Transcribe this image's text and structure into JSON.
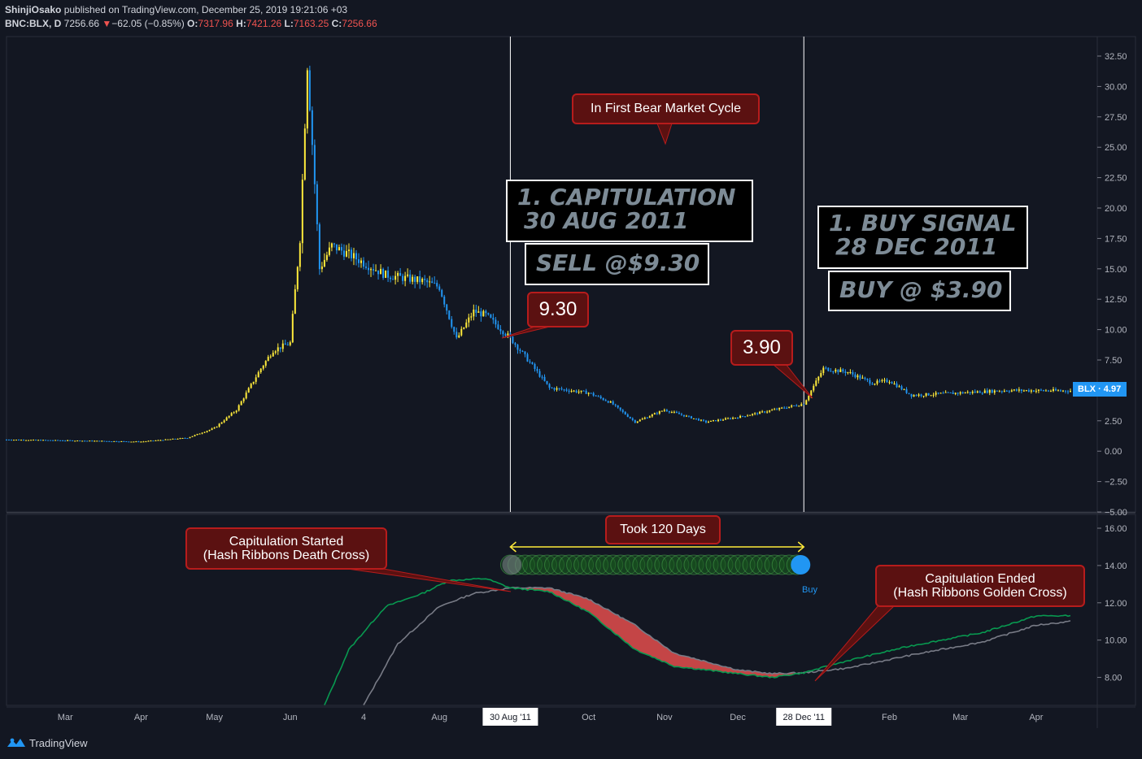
{
  "header": {
    "author": "ShinjiOsako",
    "published": "published on TradingView.com, December 25, 2019 19:21:06 +03",
    "symbol": "BNC:BLX, D",
    "last": "7256.66",
    "change_arrow": "▼",
    "change": "−62.05 (−0.85%)",
    "o_label": "O:",
    "o": "7317.96",
    "h_label": "H:",
    "h": "7421.26",
    "l_label": "L:",
    "l": "7163.25",
    "c_label": "C:",
    "c": "7256.66"
  },
  "annotations": {
    "bear_cycle": "In First Bear Market Cycle",
    "capitulation_line1": "1. CAPITULATION",
    "capitulation_line2": "30 AUG 2011",
    "sell": "SELL @$9.30",
    "price_930": "9.30",
    "price_390": "3.90",
    "buy_signal_line1": "1. BUY SIGNAL",
    "buy_signal_line2": "28 DEC 2011",
    "buy": "BUY @ $3.90",
    "took_days": "Took 120 Days",
    "cap_started_line1": "Capitulation Started",
    "cap_started_line2": "(Hash Ribbons Death Cross)",
    "cap_ended_line1": "Capitulation Ended",
    "cap_ended_line2": "(Hash Ribbons Golden Cross)",
    "buy_marker": "Buy"
  },
  "price_badge": {
    "symbol": "BLX",
    "value": "4.97"
  },
  "footer": {
    "brand": "TradingView"
  },
  "colors": {
    "up": "#ffeb3b",
    "down": "#2196f3",
    "fast_ma": "#089950",
    "slow_ma": "#787b86",
    "ribbon_fill": "#d84a4a",
    "callout_bg": "#5b1111",
    "callout_border": "#b71c1c"
  },
  "chart_data": [
    {
      "type": "candlestick",
      "symbol": "BNC:BLX",
      "interval": "D",
      "y_ticks": [
        "32.50",
        "30.00",
        "27.50",
        "25.00",
        "22.50",
        "20.00",
        "17.50",
        "15.00",
        "12.50",
        "10.00",
        "7.50",
        "5.00",
        "2.50",
        "0.00",
        "−2.50",
        "−5.00"
      ],
      "ylim": [
        -5,
        33
      ],
      "x_ticks": [
        "Mar",
        "Apr",
        "May",
        "Jun",
        "4",
        "Aug",
        "30 Aug '11",
        "Oct",
        "Nov",
        "Dec",
        "28 Dec '11",
        "Feb",
        "Mar",
        "Apr"
      ],
      "x_dates": [
        "2011-03-01",
        "2011-04-01",
        "2011-05-01",
        "2011-06-01",
        "2011-07-01",
        "2011-08-01",
        "2011-08-30",
        "2011-10-01",
        "2011-11-01",
        "2011-12-01",
        "2011-12-28",
        "2012-02-01",
        "2012-03-01",
        "2012-04-01"
      ],
      "xlim": [
        "2011-02-05",
        "2012-04-15"
      ],
      "price_path": [
        {
          "date": "2011-02-05",
          "close": 0.95
        },
        {
          "date": "2011-03-01",
          "close": 0.88
        },
        {
          "date": "2011-04-01",
          "close": 0.78
        },
        {
          "date": "2011-04-20",
          "close": 1.1
        },
        {
          "date": "2011-05-01",
          "close": 1.9
        },
        {
          "date": "2011-05-10",
          "close": 3.4
        },
        {
          "date": "2011-05-20",
          "close": 6.8
        },
        {
          "date": "2011-05-25",
          "close": 8.3
        },
        {
          "date": "2011-06-01",
          "close": 8.9
        },
        {
          "date": "2011-06-05",
          "close": 17.5
        },
        {
          "date": "2011-06-08",
          "close": 31.9
        },
        {
          "date": "2011-06-11",
          "close": 22
        },
        {
          "date": "2011-06-13",
          "close": 15
        },
        {
          "date": "2011-06-18",
          "close": 16.9
        },
        {
          "date": "2011-06-25",
          "close": 16.2
        },
        {
          "date": "2011-07-01",
          "close": 15.5
        },
        {
          "date": "2011-07-10",
          "close": 14.5
        },
        {
          "date": "2011-07-25",
          "close": 14
        },
        {
          "date": "2011-08-01",
          "close": 13.5
        },
        {
          "date": "2011-08-08",
          "close": 9.2
        },
        {
          "date": "2011-08-15",
          "close": 11.5
        },
        {
          "date": "2011-08-20",
          "close": 11.2
        },
        {
          "date": "2011-08-30",
          "close": 9.3
        },
        {
          "date": "2011-09-05",
          "close": 7.8
        },
        {
          "date": "2011-09-15",
          "close": 5.2
        },
        {
          "date": "2011-10-01",
          "close": 4.8
        },
        {
          "date": "2011-10-10",
          "close": 4.0
        },
        {
          "date": "2011-10-20",
          "close": 2.4
        },
        {
          "date": "2011-11-01",
          "close": 3.4
        },
        {
          "date": "2011-11-18",
          "close": 2.4
        },
        {
          "date": "2011-12-01",
          "close": 2.8
        },
        {
          "date": "2011-12-28",
          "close": 3.9
        },
        {
          "date": "2012-01-05",
          "close": 6.8
        },
        {
          "date": "2012-01-15",
          "close": 6.5
        },
        {
          "date": "2012-01-25",
          "close": 5.6
        },
        {
          "date": "2012-02-01",
          "close": 5.8
        },
        {
          "date": "2012-02-10",
          "close": 4.6
        },
        {
          "date": "2012-03-01",
          "close": 4.8
        },
        {
          "date": "2012-03-20",
          "close": 5.0
        },
        {
          "date": "2012-04-15",
          "close": 4.97
        }
      ],
      "events": [
        {
          "date": "2011-08-30",
          "price": 9.3,
          "label": "SELL"
        },
        {
          "date": "2011-12-28",
          "price": 3.9,
          "label": "BUY"
        }
      ]
    },
    {
      "type": "line",
      "title": "Hash Ribbons",
      "y_ticks": [
        "16.00",
        "14.00",
        "12.00",
        "10.00",
        "8.00"
      ],
      "ylim": [
        6.5,
        16.5
      ],
      "series": [
        {
          "values": [
            {
              "date": "2011-06-15",
              "y": 6.5
            },
            {
              "date": "2011-06-25",
              "y": 9.5
            },
            {
              "date": "2011-07-10",
              "y": 11.8
            },
            {
              "date": "2011-07-25",
              "y": 12.5
            },
            {
              "date": "2011-08-05",
              "y": 13.2
            },
            {
              "date": "2011-08-20",
              "y": 13.3
            },
            {
              "date": "2011-08-30",
              "y": 12.8
            },
            {
              "date": "2011-09-15",
              "y": 12.6
            },
            {
              "date": "2011-10-01",
              "y": 11.5
            },
            {
              "date": "2011-10-20",
              "y": 9.5
            },
            {
              "date": "2011-11-05",
              "y": 8.6
            },
            {
              "date": "2011-12-01",
              "y": 8.2
            },
            {
              "date": "2011-12-15",
              "y": 8.0
            },
            {
              "date": "2011-12-28",
              "y": 8.25
            },
            {
              "date": "2012-01-15",
              "y": 8.9
            },
            {
              "date": "2012-02-10",
              "y": 9.7
            },
            {
              "date": "2012-03-10",
              "y": 10.4
            },
            {
              "date": "2012-04-01",
              "y": 11.3
            },
            {
              "date": "2012-04-15",
              "y": 11.3
            }
          ]
        },
        {
          "values": [
            {
              "date": "2011-07-01",
              "y": 6.5
            },
            {
              "date": "2011-07-15",
              "y": 9.8
            },
            {
              "date": "2011-08-01",
              "y": 11.8
            },
            {
              "date": "2011-08-15",
              "y": 12.5
            },
            {
              "date": "2011-08-30",
              "y": 12.8
            },
            {
              "date": "2011-09-15",
              "y": 12.8
            },
            {
              "date": "2011-10-01",
              "y": 12.2
            },
            {
              "date": "2011-10-20",
              "y": 10.8
            },
            {
              "date": "2011-11-05",
              "y": 9.3
            },
            {
              "date": "2011-12-01",
              "y": 8.4
            },
            {
              "date": "2011-12-15",
              "y": 8.2
            },
            {
              "date": "2011-12-28",
              "y": 8.25
            },
            {
              "date": "2012-01-15",
              "y": 8.5
            },
            {
              "date": "2012-02-10",
              "y": 9.2
            },
            {
              "date": "2012-03-10",
              "y": 9.9
            },
            {
              "date": "2012-04-01",
              "y": 10.8
            },
            {
              "date": "2012-04-15",
              "y": 11.0
            }
          ]
        }
      ],
      "range_arrow": {
        "from": "2011-08-30",
        "to": "2011-12-28"
      }
    }
  ]
}
